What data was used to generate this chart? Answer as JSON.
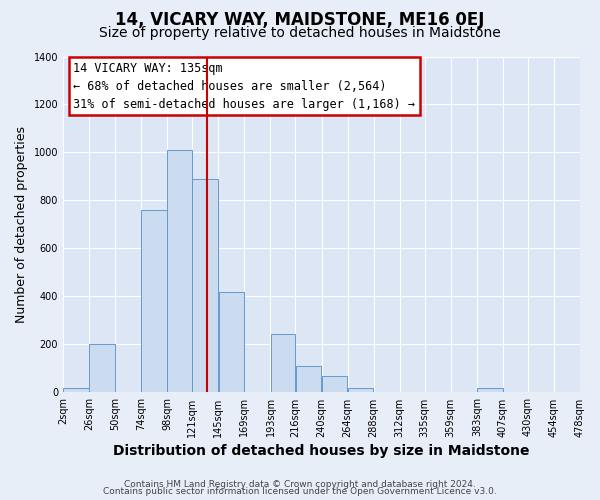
{
  "title": "14, VICARY WAY, MAIDSTONE, ME16 0EJ",
  "subtitle": "Size of property relative to detached houses in Maidstone",
  "xlabel": "Distribution of detached houses by size in Maidstone",
  "ylabel": "Number of detached properties",
  "bar_left_edges": [
    2,
    26,
    50,
    74,
    98,
    121,
    145,
    169,
    193,
    216,
    240,
    264,
    288,
    312,
    335,
    359,
    383,
    407,
    430,
    454
  ],
  "bar_widths": [
    24,
    24,
    24,
    24,
    23,
    24,
    24,
    24,
    23,
    24,
    24,
    24,
    24,
    23,
    24,
    24,
    24,
    23,
    24,
    24
  ],
  "bar_heights": [
    20,
    200,
    0,
    760,
    1010,
    890,
    420,
    0,
    245,
    110,
    70,
    20,
    0,
    0,
    0,
    0,
    20,
    0,
    0,
    0
  ],
  "bar_facecolor": "#ccdcf0",
  "bar_edgecolor": "#6699cc",
  "tick_labels": [
    "2sqm",
    "26sqm",
    "50sqm",
    "74sqm",
    "98sqm",
    "121sqm",
    "145sqm",
    "169sqm",
    "193sqm",
    "216sqm",
    "240sqm",
    "264sqm",
    "288sqm",
    "312sqm",
    "335sqm",
    "359sqm",
    "383sqm",
    "407sqm",
    "430sqm",
    "454sqm",
    "478sqm"
  ],
  "vline_x": 135,
  "vline_color": "#cc0000",
  "vline_lw": 1.5,
  "ylim": [
    0,
    1400
  ],
  "yticks": [
    0,
    200,
    400,
    600,
    800,
    1000,
    1200,
    1400
  ],
  "annotation_title": "14 VICARY WAY: 135sqm",
  "annotation_line1": "← 68% of detached houses are smaller (2,564)",
  "annotation_line2": "31% of semi-detached houses are larger (1,168) →",
  "annotation_box_edgecolor": "#cc0000",
  "footer1": "Contains HM Land Registry data © Crown copyright and database right 2024.",
  "footer2": "Contains public sector information licensed under the Open Government Licence v3.0.",
  "bg_color": "#e8eef8",
  "plot_bg_color": "#dce6f5",
  "grid_color": "#ffffff",
  "title_fontsize": 12,
  "subtitle_fontsize": 10,
  "xlabel_fontsize": 10,
  "ylabel_fontsize": 9,
  "tick_fontsize": 7,
  "annotation_fontsize": 8.5,
  "footer_fontsize": 6.5
}
